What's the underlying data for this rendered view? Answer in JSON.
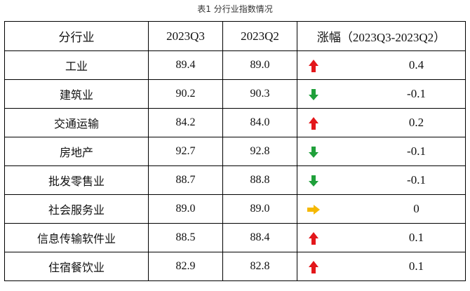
{
  "caption": "表1 分行业指数情况",
  "headers": {
    "industry": "分行业",
    "q3": "2023Q3",
    "q2": "2023Q2",
    "change_cn": "涨幅",
    "change_period": "（2023Q3-2023Q2）"
  },
  "colors": {
    "up": "#e3171b",
    "down": "#1fa03a",
    "flat": "#f5b800"
  },
  "rows": [
    {
      "industry": "工业",
      "q3": "89.4",
      "q2": "89.0",
      "direction": "up",
      "icon": "red-up-arrow-icon",
      "change": "0.4"
    },
    {
      "industry": "建筑业",
      "q3": "90.2",
      "q2": "90.3",
      "direction": "down",
      "icon": "green-down-arrow-icon",
      "change": "-0.1"
    },
    {
      "industry": "交通运输",
      "q3": "84.2",
      "q2": "84.0",
      "direction": "up",
      "icon": "red-up-arrow-icon",
      "change": "0.2"
    },
    {
      "industry": "房地产",
      "q3": "92.7",
      "q2": "92.8",
      "direction": "down",
      "icon": "green-down-arrow-icon",
      "change": "-0.1"
    },
    {
      "industry": "批发零售业",
      "q3": "88.7",
      "q2": "88.8",
      "direction": "down",
      "icon": "green-down-arrow-icon",
      "change": "-0.1"
    },
    {
      "industry": "社会服务业",
      "q3": "89.0",
      "q2": "89.0",
      "direction": "flat",
      "icon": "orange-right-arrow-icon",
      "change": "0"
    },
    {
      "industry": "信息传输软件业",
      "q3": "88.5",
      "q2": "88.4",
      "direction": "up",
      "icon": "red-up-arrow-icon",
      "change": "0.1"
    },
    {
      "industry": "住宿餐饮业",
      "q3": "82.9",
      "q2": "82.8",
      "direction": "up",
      "icon": "red-up-arrow-icon",
      "change": "0.1"
    }
  ]
}
